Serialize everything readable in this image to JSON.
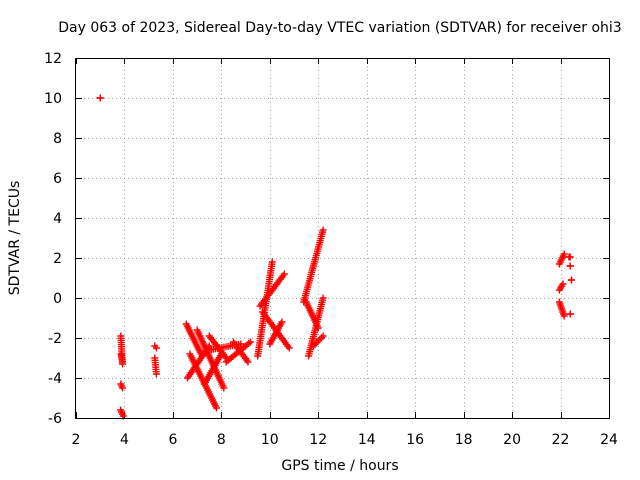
{
  "chart_data": {
    "type": "scatter",
    "title": "Day 063 of 2023, Sidereal Day-to-day VTEC variation (SDTVAR) for receiver ohi3",
    "xlabel": "GPS time / hours",
    "ylabel": "SDTVAR / TECUs",
    "xlim": [
      2,
      24
    ],
    "ylim": [
      -6,
      12
    ],
    "xticks": [
      2,
      4,
      6,
      8,
      10,
      12,
      14,
      16,
      18,
      20,
      22,
      24
    ],
    "yticks": [
      -6,
      -4,
      -2,
      0,
      2,
      4,
      6,
      8,
      10,
      12
    ],
    "xtick_labels": [
      "2",
      "4",
      "6",
      "8",
      "10",
      "12",
      "14",
      "16",
      "18",
      "20",
      "22",
      "24"
    ],
    "ytick_labels": [
      "-6",
      "-4",
      "-2",
      "0",
      "2",
      "4",
      "6",
      "8",
      "10",
      "12"
    ],
    "grid": true,
    "marker": "+",
    "color": "#ff0000",
    "segments": [
      {
        "x": [
          3.0,
          3.0
        ],
        "y": [
          10.0,
          10.0
        ]
      },
      {
        "x": [
          3.85,
          3.92
        ],
        "y": [
          -1.9,
          -3.3
        ]
      },
      {
        "x": [
          3.86,
          3.92
        ],
        "y": [
          -2.8,
          -3.2
        ]
      },
      {
        "x": [
          3.85,
          3.92
        ],
        "y": [
          -4.3,
          -4.5
        ]
      },
      {
        "x": [
          3.84,
          3.95
        ],
        "y": [
          -5.6,
          -5.9
        ]
      },
      {
        "x": [
          5.25,
          5.32
        ],
        "y": [
          -2.4,
          -2.5
        ]
      },
      {
        "x": [
          5.25,
          5.32
        ],
        "y": [
          -3.0,
          -3.8
        ]
      },
      {
        "x": [
          6.55,
          7.2
        ],
        "y": [
          -1.3,
          -2.9
        ]
      },
      {
        "x": [
          6.6,
          7.5
        ],
        "y": [
          -4.0,
          -2.4
        ]
      },
      {
        "x": [
          6.7,
          7.8
        ],
        "y": [
          -2.8,
          -5.5
        ]
      },
      {
        "x": [
          7.0,
          8.1
        ],
        "y": [
          -1.6,
          -4.5
        ]
      },
      {
        "x": [
          7.3,
          8.0
        ],
        "y": [
          -4.3,
          -2.8
        ]
      },
      {
        "x": [
          7.5,
          8.2
        ],
        "y": [
          -1.9,
          -3.0
        ]
      },
      {
        "x": [
          7.5,
          8.8
        ],
        "y": [
          -2.6,
          -2.3
        ]
      },
      {
        "x": [
          8.2,
          9.2
        ],
        "y": [
          -3.2,
          -2.2
        ]
      },
      {
        "x": [
          8.5,
          9.1
        ],
        "y": [
          -2.2,
          -3.2
        ]
      },
      {
        "x": [
          9.5,
          10.1
        ],
        "y": [
          -2.9,
          1.8
        ]
      },
      {
        "x": [
          9.6,
          10.6
        ],
        "y": [
          -0.4,
          1.2
        ]
      },
      {
        "x": [
          9.7,
          10.8
        ],
        "y": [
          -0.7,
          -2.5
        ]
      },
      {
        "x": [
          10.0,
          10.5
        ],
        "y": [
          -2.3,
          -1.2
        ]
      },
      {
        "x": [
          11.4,
          12.2
        ],
        "y": [
          -0.2,
          3.4
        ]
      },
      {
        "x": [
          11.5,
          12.0
        ],
        "y": [
          -0.2,
          -1.5
        ]
      },
      {
        "x": [
          11.6,
          12.2
        ],
        "y": [
          -2.9,
          0.0
        ]
      },
      {
        "x": [
          11.8,
          12.2
        ],
        "y": [
          -2.4,
          -1.9
        ]
      },
      {
        "x": [
          21.95,
          22.15
        ],
        "y": [
          1.7,
          2.2
        ]
      },
      {
        "x": [
          21.95,
          22.1
        ],
        "y": [
          0.4,
          0.7
        ]
      },
      {
        "x": [
          21.95,
          22.15
        ],
        "y": [
          -0.2,
          -0.9
        ]
      },
      {
        "x": [
          22.35,
          22.4
        ],
        "y": [
          2.05,
          2.05
        ]
      },
      {
        "x": [
          22.4,
          22.4
        ],
        "y": [
          1.6,
          1.6
        ]
      },
      {
        "x": [
          22.45,
          22.45
        ],
        "y": [
          0.9,
          0.9
        ]
      },
      {
        "x": [
          22.4,
          22.4
        ],
        "y": [
          -0.8,
          -0.8
        ]
      }
    ]
  }
}
